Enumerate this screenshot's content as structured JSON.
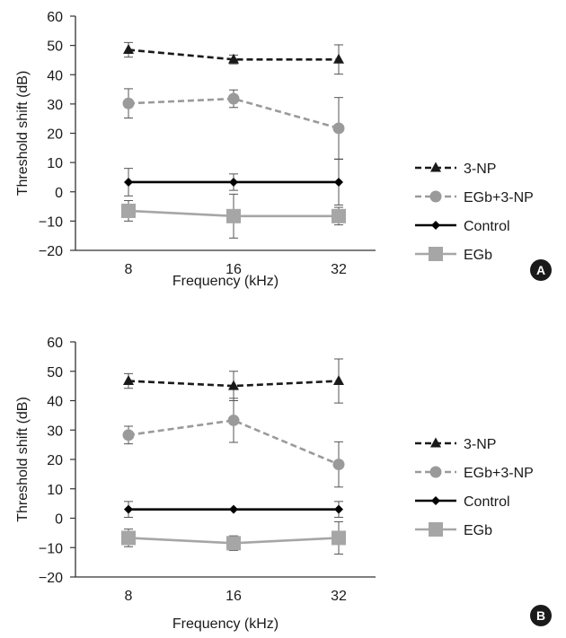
{
  "chart_data": [
    {
      "type": "line",
      "panel_label": "A",
      "xlabel": "Frequency (kHz)",
      "ylabel": "Threshold shift (dB)",
      "categories": [
        "8",
        "16",
        "32"
      ],
      "ylim": [
        -20,
        60
      ],
      "yticks": [
        "−20",
        "−10",
        "0",
        "10",
        "20",
        "30",
        "40",
        "50",
        "60"
      ],
      "grid": false,
      "legend_position": "right",
      "series": [
        {
          "name": "3-NP",
          "values": [
            48.5,
            45.2,
            45.2
          ],
          "error": [
            2.5,
            1.5,
            5.0
          ],
          "color": "#1a1a1a",
          "dash": true,
          "marker": "triangle"
        },
        {
          "name": "EGb+3-NP",
          "values": [
            30.2,
            31.8,
            21.7
          ],
          "error": [
            5.0,
            3.0,
            10.5
          ],
          "color": "#9a9a9a",
          "dash": true,
          "marker": "circle"
        },
        {
          "name": "Control",
          "values": [
            3.3,
            3.3,
            3.3
          ],
          "error": [
            4.7,
            2.8,
            7.8
          ],
          "color": "#000000",
          "dash": false,
          "marker": "diamond"
        },
        {
          "name": "EGb",
          "values": [
            -6.5,
            -8.3,
            -8.3
          ],
          "error": [
            3.5,
            7.5,
            3.0
          ],
          "color": "#a6a6a6",
          "dash": false,
          "marker": "square"
        }
      ]
    },
    {
      "type": "line",
      "panel_label": "B",
      "xlabel": "Frequency (kHz)",
      "ylabel": "Threshold shift (dB)",
      "categories": [
        "8",
        "16",
        "32"
      ],
      "ylim": [
        -20,
        60
      ],
      "yticks": [
        "−20",
        "−10",
        "0",
        "10",
        "20",
        "30",
        "40",
        "50",
        "60"
      ],
      "grid": false,
      "legend_position": "right",
      "series": [
        {
          "name": "3-NP",
          "values": [
            46.7,
            45.0,
            46.7
          ],
          "error": [
            2.5,
            5.0,
            7.5
          ],
          "color": "#1a1a1a",
          "dash": true,
          "marker": "triangle"
        },
        {
          "name": "EGb+3-NP",
          "values": [
            28.3,
            33.3,
            18.3
          ],
          "error": [
            3.0,
            7.5,
            7.7
          ],
          "color": "#9a9a9a",
          "dash": true,
          "marker": "circle"
        },
        {
          "name": "Control",
          "values": [
            3.0,
            3.0,
            3.0
          ],
          "error": [
            2.7,
            0,
            2.7
          ],
          "color": "#000000",
          "dash": false,
          "marker": "diamond"
        },
        {
          "name": "EGb",
          "values": [
            -6.7,
            -8.5,
            -6.7
          ],
          "error": [
            3.0,
            2.5,
            5.5
          ],
          "color": "#a6a6a6",
          "dash": false,
          "marker": "square"
        }
      ]
    }
  ]
}
